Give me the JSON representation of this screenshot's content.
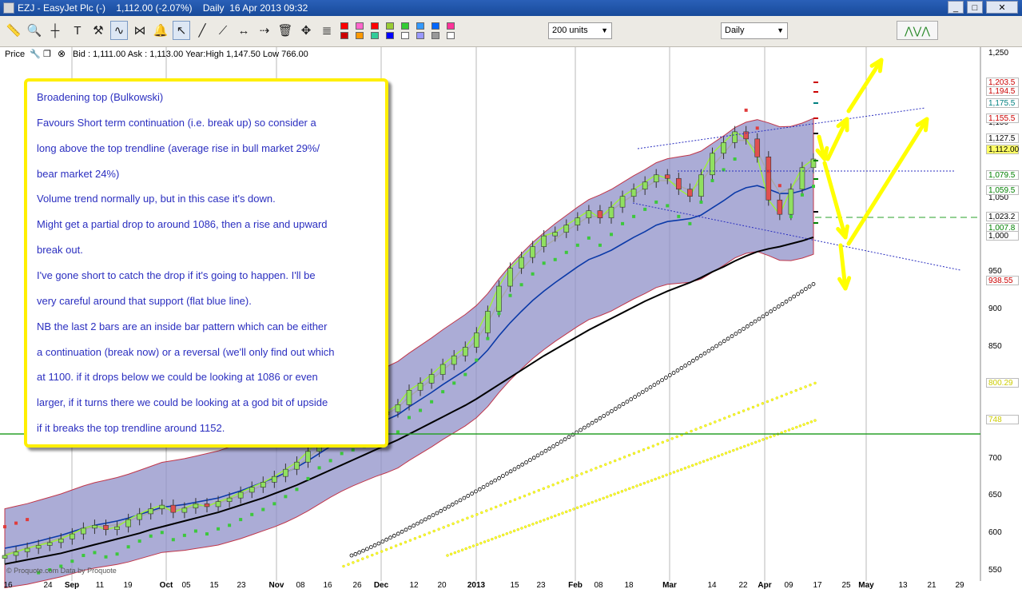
{
  "window": {
    "title": "EZJ - EasyJet Plc (-)    1,112.00 (-2.07%)    Daily  16 Apr 2013 09:32",
    "minimize": "_",
    "maximize": "□",
    "close": "✕"
  },
  "toolbar": {
    "icons": [
      "ruler-icon",
      "zoom-icon",
      "crosshair-icon",
      "text-icon",
      "tools-icon",
      "indicator-icon",
      "pattern-icon",
      "alert-icon",
      "pointer-icon",
      "trendline-icon",
      "ray-icon",
      "horizontal-line-icon",
      "extend-line-icon",
      "delete-icon",
      "move-icon",
      "fib-icon"
    ],
    "swatch_colors": [
      "#ff0000",
      "#ff66cc",
      "#ff0000",
      "#99cc33",
      "#33cc33",
      "#3399ff",
      "#0066ff",
      "#ff3399",
      "#cc0000",
      "#ff9900",
      "#33cc99",
      "#0000ff",
      "#ffffff",
      "#9999ff",
      "#999999",
      "#ffffff"
    ],
    "units_select": "200 units",
    "period_select": "Daily"
  },
  "info": {
    "price_label": "Price",
    "quote": "Bid : 1,111.00 Ask : 1,113.00 Year:High 1,147.50 Low 766.00"
  },
  "annotation": {
    "lines": [
      "Broadening top (Bulkowski)",
      "Favours Short term continuation (i.e. break up) so consider a",
      "long above the top trendline (average rise in bull market 29%/",
      "bear market 24%)",
      "Volume trend normally up, but in this case it's down.",
      "Might get a partial drop to around 1086, then a rise and upward",
      "break out.",
      "I've gone short to catch the drop if it's going to happen. I'll be",
      "very careful around that support (flat blue line).",
      "NB the last 2 bars are an inside bar pattern which can be either",
      "a continuation (break now) or a reversal (we'll only find out which",
      "at 1100. if it drops below we could be looking at 1086 or even",
      "larger, if it turns there we could be looking at a god bit of upside",
      "if it breaks the top trendline around 1152."
    ]
  },
  "axis": {
    "y_ticks": [
      "1,250",
      "1,150",
      "1,050",
      "950",
      "900",
      "850",
      "800",
      "750",
      "700",
      "650",
      "600",
      "550"
    ],
    "y_boxes": [
      {
        "label": "1,203.5",
        "color": "#cc0000",
        "bg": "#ffffff"
      },
      {
        "label": "1,194.5",
        "color": "#cc0000",
        "bg": "#ffffff"
      },
      {
        "label": "1,175.5",
        "color": "#008080",
        "bg": "#ffffff"
      },
      {
        "label": "1,155.5",
        "color": "#cc0000",
        "bg": "#ffffff"
      },
      {
        "label": "1,127.5",
        "color": "#000000",
        "bg": "#ffffff"
      },
      {
        "label": "1,112.00",
        "color": "#000000",
        "bg": "#ffff66"
      },
      {
        "label": "1,079.5",
        "color": "#008000",
        "bg": "#ffffff"
      },
      {
        "label": "1,059.5",
        "color": "#008000",
        "bg": "#ffffff"
      },
      {
        "label": "1,023.2",
        "color": "#000000",
        "bg": "#ffffff"
      },
      {
        "label": "1,007.8",
        "color": "#008000",
        "bg": "#ffffff"
      },
      {
        "label": "1,000",
        "color": "#000000",
        "bg": "#ffffff"
      },
      {
        "label": "938.55",
        "color": "#cc0000",
        "bg": "#ffffff"
      },
      {
        "label": "800.29",
        "color": "#cccc00",
        "bg": "#ffffff"
      },
      {
        "label": "748",
        "color": "#cccc00",
        "bg": "#ffffff"
      }
    ],
    "x_ticks": [
      {
        "label": "16",
        "month": false
      },
      {
        "label": "24",
        "month": false
      },
      {
        "label": "Sep",
        "month": true
      },
      {
        "label": "11",
        "month": false
      },
      {
        "label": "19",
        "month": false
      },
      {
        "label": "Oct",
        "month": true
      },
      {
        "label": "05",
        "month": false
      },
      {
        "label": "15",
        "month": false
      },
      {
        "label": "23",
        "month": false
      },
      {
        "label": "Nov",
        "month": true
      },
      {
        "label": "08",
        "month": false
      },
      {
        "label": "16",
        "month": false
      },
      {
        "label": "26",
        "month": false
      },
      {
        "label": "Dec",
        "month": true
      },
      {
        "label": "12",
        "month": false
      },
      {
        "label": "20",
        "month": false
      },
      {
        "label": "2013",
        "month": true
      },
      {
        "label": "15",
        "month": false
      },
      {
        "label": "23",
        "month": false
      },
      {
        "label": "Feb",
        "month": true
      },
      {
        "label": "08",
        "month": false
      },
      {
        "label": "18",
        "month": false
      },
      {
        "label": "Mar",
        "month": true
      },
      {
        "label": "14",
        "month": false
      },
      {
        "label": "22",
        "month": false
      },
      {
        "label": "Apr",
        "month": true
      },
      {
        "label": "09",
        "month": false
      },
      {
        "label": "17",
        "month": false
      },
      {
        "label": "25",
        "month": false
      },
      {
        "label": "May",
        "month": true
      },
      {
        "label": "13",
        "month": false
      },
      {
        "label": "21",
        "month": false
      },
      {
        "label": "29",
        "month": false
      }
    ],
    "credit": "© Proquote.com Data by Proquote"
  },
  "chart_data": {
    "type": "line",
    "title": "",
    "ylim": [
      540,
      1260
    ],
    "price_close": [
      560,
      565,
      570,
      574,
      578,
      583,
      590,
      598,
      602,
      596,
      600,
      610,
      618,
      625,
      630,
      620,
      626,
      632,
      628,
      635,
      640,
      648,
      655,
      662,
      670,
      680,
      690,
      705,
      720,
      730,
      740,
      745,
      750,
      756,
      760,
      770,
      790,
      800,
      812,
      826,
      838,
      850,
      870,
      900,
      935,
      960,
      975,
      990,
      1005,
      1010,
      1020,
      1030,
      1040,
      1030,
      1045,
      1060,
      1070,
      1080,
      1090,
      1085,
      1070,
      1060,
      1090,
      1120,
      1135,
      1150,
      1140,
      1115,
      1055,
      1035,
      1070,
      1100,
      1112
    ],
    "ma_short": [
      562,
      566,
      570,
      575,
      580,
      585,
      591,
      596,
      600,
      601,
      603,
      608,
      614,
      620,
      625,
      624,
      625,
      628,
      630,
      633,
      638,
      644,
      651,
      658,
      665,
      674,
      684,
      696,
      708,
      720,
      730,
      738,
      745,
      751,
      757,
      766,
      781,
      793,
      805,
      818,
      831,
      843,
      860,
      884,
      913,
      938,
      958,
      975,
      990,
      1000,
      1012,
      1022,
      1032,
      1032,
      1040,
      1052,
      1062,
      1072,
      1082,
      1082,
      1075,
      1068,
      1080,
      1102,
      1120,
      1138,
      1138,
      1124,
      1090,
      1065,
      1072,
      1090,
      1105
    ],
    "ma_mid": [
      570,
      573,
      576,
      580,
      584,
      588,
      593,
      598,
      602,
      605,
      608,
      612,
      617,
      622,
      627,
      629,
      631,
      634,
      637,
      640,
      645,
      650,
      656,
      662,
      668,
      675,
      683,
      692,
      702,
      712,
      721,
      729,
      736,
      743,
      749,
      756,
      767,
      777,
      787,
      798,
      808,
      818,
      830,
      846,
      866,
      884,
      900,
      915,
      928,
      940,
      951,
      962,
      972,
      978,
      985,
      994,
      1003,
      1011,
      1020,
      1025,
      1027,
      1029,
      1034,
      1044,
      1054,
      1065,
      1072,
      1075,
      1070,
      1064,
      1064,
      1068,
      1074
    ],
    "ma_long": [
      548,
      551,
      554,
      557,
      560,
      563,
      567,
      571,
      575,
      579,
      583,
      587,
      591,
      596,
      600,
      604,
      608,
      612,
      616,
      620,
      625,
      630,
      635,
      640,
      646,
      652,
      658,
      665,
      672,
      679,
      686,
      693,
      700,
      707,
      714,
      721,
      729,
      737,
      745,
      753,
      761,
      769,
      778,
      788,
      798,
      808,
      818,
      828,
      838,
      847,
      856,
      865,
      874,
      882,
      890,
      898,
      906,
      914,
      921,
      928,
      934,
      940,
      947,
      955,
      962,
      970,
      977,
      983,
      987,
      990,
      994,
      998,
      1003
    ],
    "legend": "none",
    "grid": "vertical month lines"
  }
}
